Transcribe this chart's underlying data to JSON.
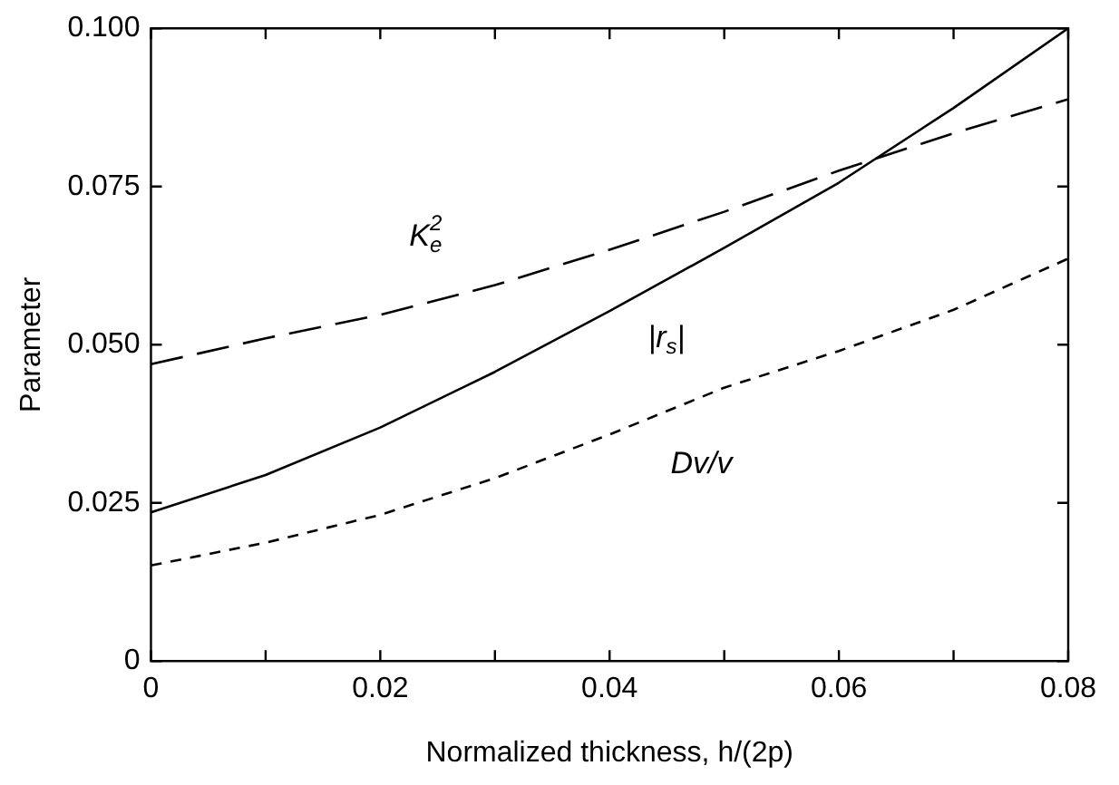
{
  "chart_data": {
    "type": "line",
    "xlabel": "Normalized thickness, h/(2p)",
    "ylabel": "Parameter",
    "x": [
      0,
      0.01,
      0.02,
      0.03,
      0.04,
      0.05,
      0.06,
      0.07,
      0.08
    ],
    "series": [
      {
        "color": "#000000",
        "line_style": "solid",
        "values": [
          0.0235,
          0.0294,
          0.0369,
          0.0457,
          0.0553,
          0.0653,
          0.0756,
          0.0874,
          0.1
        ]
      },
      {
        "color": "#000000",
        "line_style": "dashed",
        "values": [
          0.0469,
          0.051,
          0.0547,
          0.0594,
          0.065,
          0.071,
          0.0775,
          0.0834,
          0.0888
        ]
      },
      {
        "color": "#000000",
        "line_style": "dotted",
        "values": [
          0.0151,
          0.0187,
          0.0231,
          0.0289,
          0.0358,
          0.0432,
          0.049,
          0.0555,
          0.0636
        ]
      }
    ],
    "annotations": [
      "K$_{e}$$^{2}$",
      "|r$_{s}$|",
      "Dv/v"
    ],
    "xlim": [
      0,
      0.08
    ],
    "xticks": [
      0,
      0.02,
      0.04,
      0.06,
      0.08
    ],
    "ylim": [
      0,
      0.1
    ],
    "yticks": [
      0,
      {
        "value": 0.025,
        "label": "0.025"
      },
      {
        "value": 0.05,
        "label": "0.050"
      },
      {
        "value": 0.075,
        "label": "0.075"
      },
      {
        "value": 0.1,
        "label": "0.100"
      }
    ],
    "grid": false,
    "legend": false,
    "marker": "none"
  }
}
